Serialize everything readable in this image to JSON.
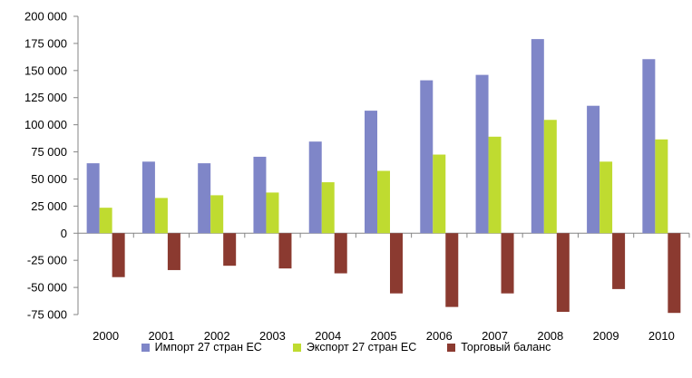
{
  "chart_data": {
    "type": "bar",
    "title": "",
    "xlabel": "",
    "ylabel": "",
    "ylim": [
      -75000,
      200000
    ],
    "yticks": [
      200000,
      175000,
      150000,
      125000,
      100000,
      75000,
      50000,
      25000,
      0,
      -25000,
      -50000,
      -75000
    ],
    "ytick_labels": [
      "200 000",
      "175 000",
      "150 000",
      "125 000",
      "100 000",
      "75 000",
      "50 000",
      "25 000",
      "0",
      "-25 000",
      "-50 000",
      "-75 000"
    ],
    "grid": false,
    "legend_position": "bottom",
    "categories": [
      "2000",
      "2001",
      "2002",
      "2003",
      "2004",
      "2005",
      "2006",
      "2007",
      "2008",
      "2009",
      "2010"
    ],
    "series": [
      {
        "name": "Импорт 27 стран ЕС",
        "color": "#7F86C8",
        "values": [
          64500,
          66000,
          64500,
          70500,
          84500,
          113000,
          141000,
          146000,
          179000,
          117500,
          160500
        ]
      },
      {
        "name": "Экспорт 27 стран ЕС",
        "color": "#BFDB30",
        "values": [
          23500,
          32500,
          35000,
          37500,
          47000,
          57500,
          72500,
          89000,
          104500,
          66000,
          86500
        ]
      },
      {
        "name": "Торговый баланс",
        "color": "#8B3A30",
        "values": [
          -40500,
          -34000,
          -30000,
          -32500,
          -37000,
          -55500,
          -68000,
          -55500,
          -72500,
          -51500,
          -73500
        ]
      }
    ]
  },
  "legend": {
    "items": [
      {
        "label": "Импорт 27 стран ЕС",
        "color": "#7F86C8"
      },
      {
        "label": "Экспорт 27 стран ЕС",
        "color": "#BFDB30"
      },
      {
        "label": "Торговый баланс",
        "color": "#8B3A30"
      }
    ]
  }
}
